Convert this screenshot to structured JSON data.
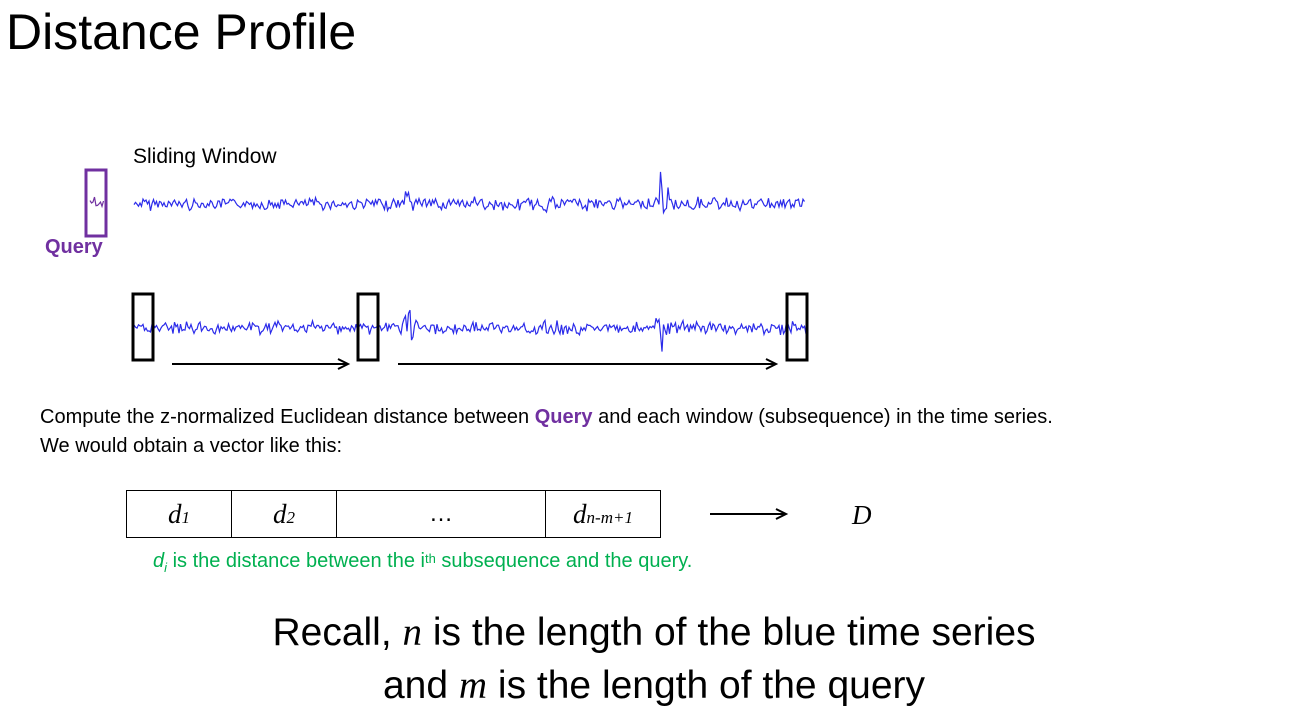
{
  "title": "Distance Profile",
  "sliding_window_label": "Sliding Window",
  "query_label": "Query",
  "description": {
    "line1_before": "Compute the z-normalized Euclidean distance between ",
    "line1_query": "Query",
    "line1_after": " and each window (subsequence) in the time series.",
    "line2": "We would obtain a vector like this:"
  },
  "vector_cells": [
    {
      "sym": "d",
      "sub": "1"
    },
    {
      "sym": "d",
      "sub": "2"
    },
    {
      "sym": "…",
      "sub": ""
    },
    {
      "sym": "d",
      "sub": "n-m+1"
    }
  ],
  "vector_label": "D",
  "note": {
    "sym": "d",
    "sub": "i",
    "before_sup": " is the distance between the i",
    "sup": "th",
    "after_sup": " subsequence and the query."
  },
  "recall": {
    "line1_before": "Recall, ",
    "line1_var": "n",
    "line1_after": " is the length of the blue time series",
    "line2_before": "and ",
    "line2_var": "m",
    "line2_after": " is the length of the query"
  },
  "colors": {
    "query": "#7030A0",
    "series": "#2B2BEA",
    "note": "#00B050",
    "stroke": "#000000"
  }
}
